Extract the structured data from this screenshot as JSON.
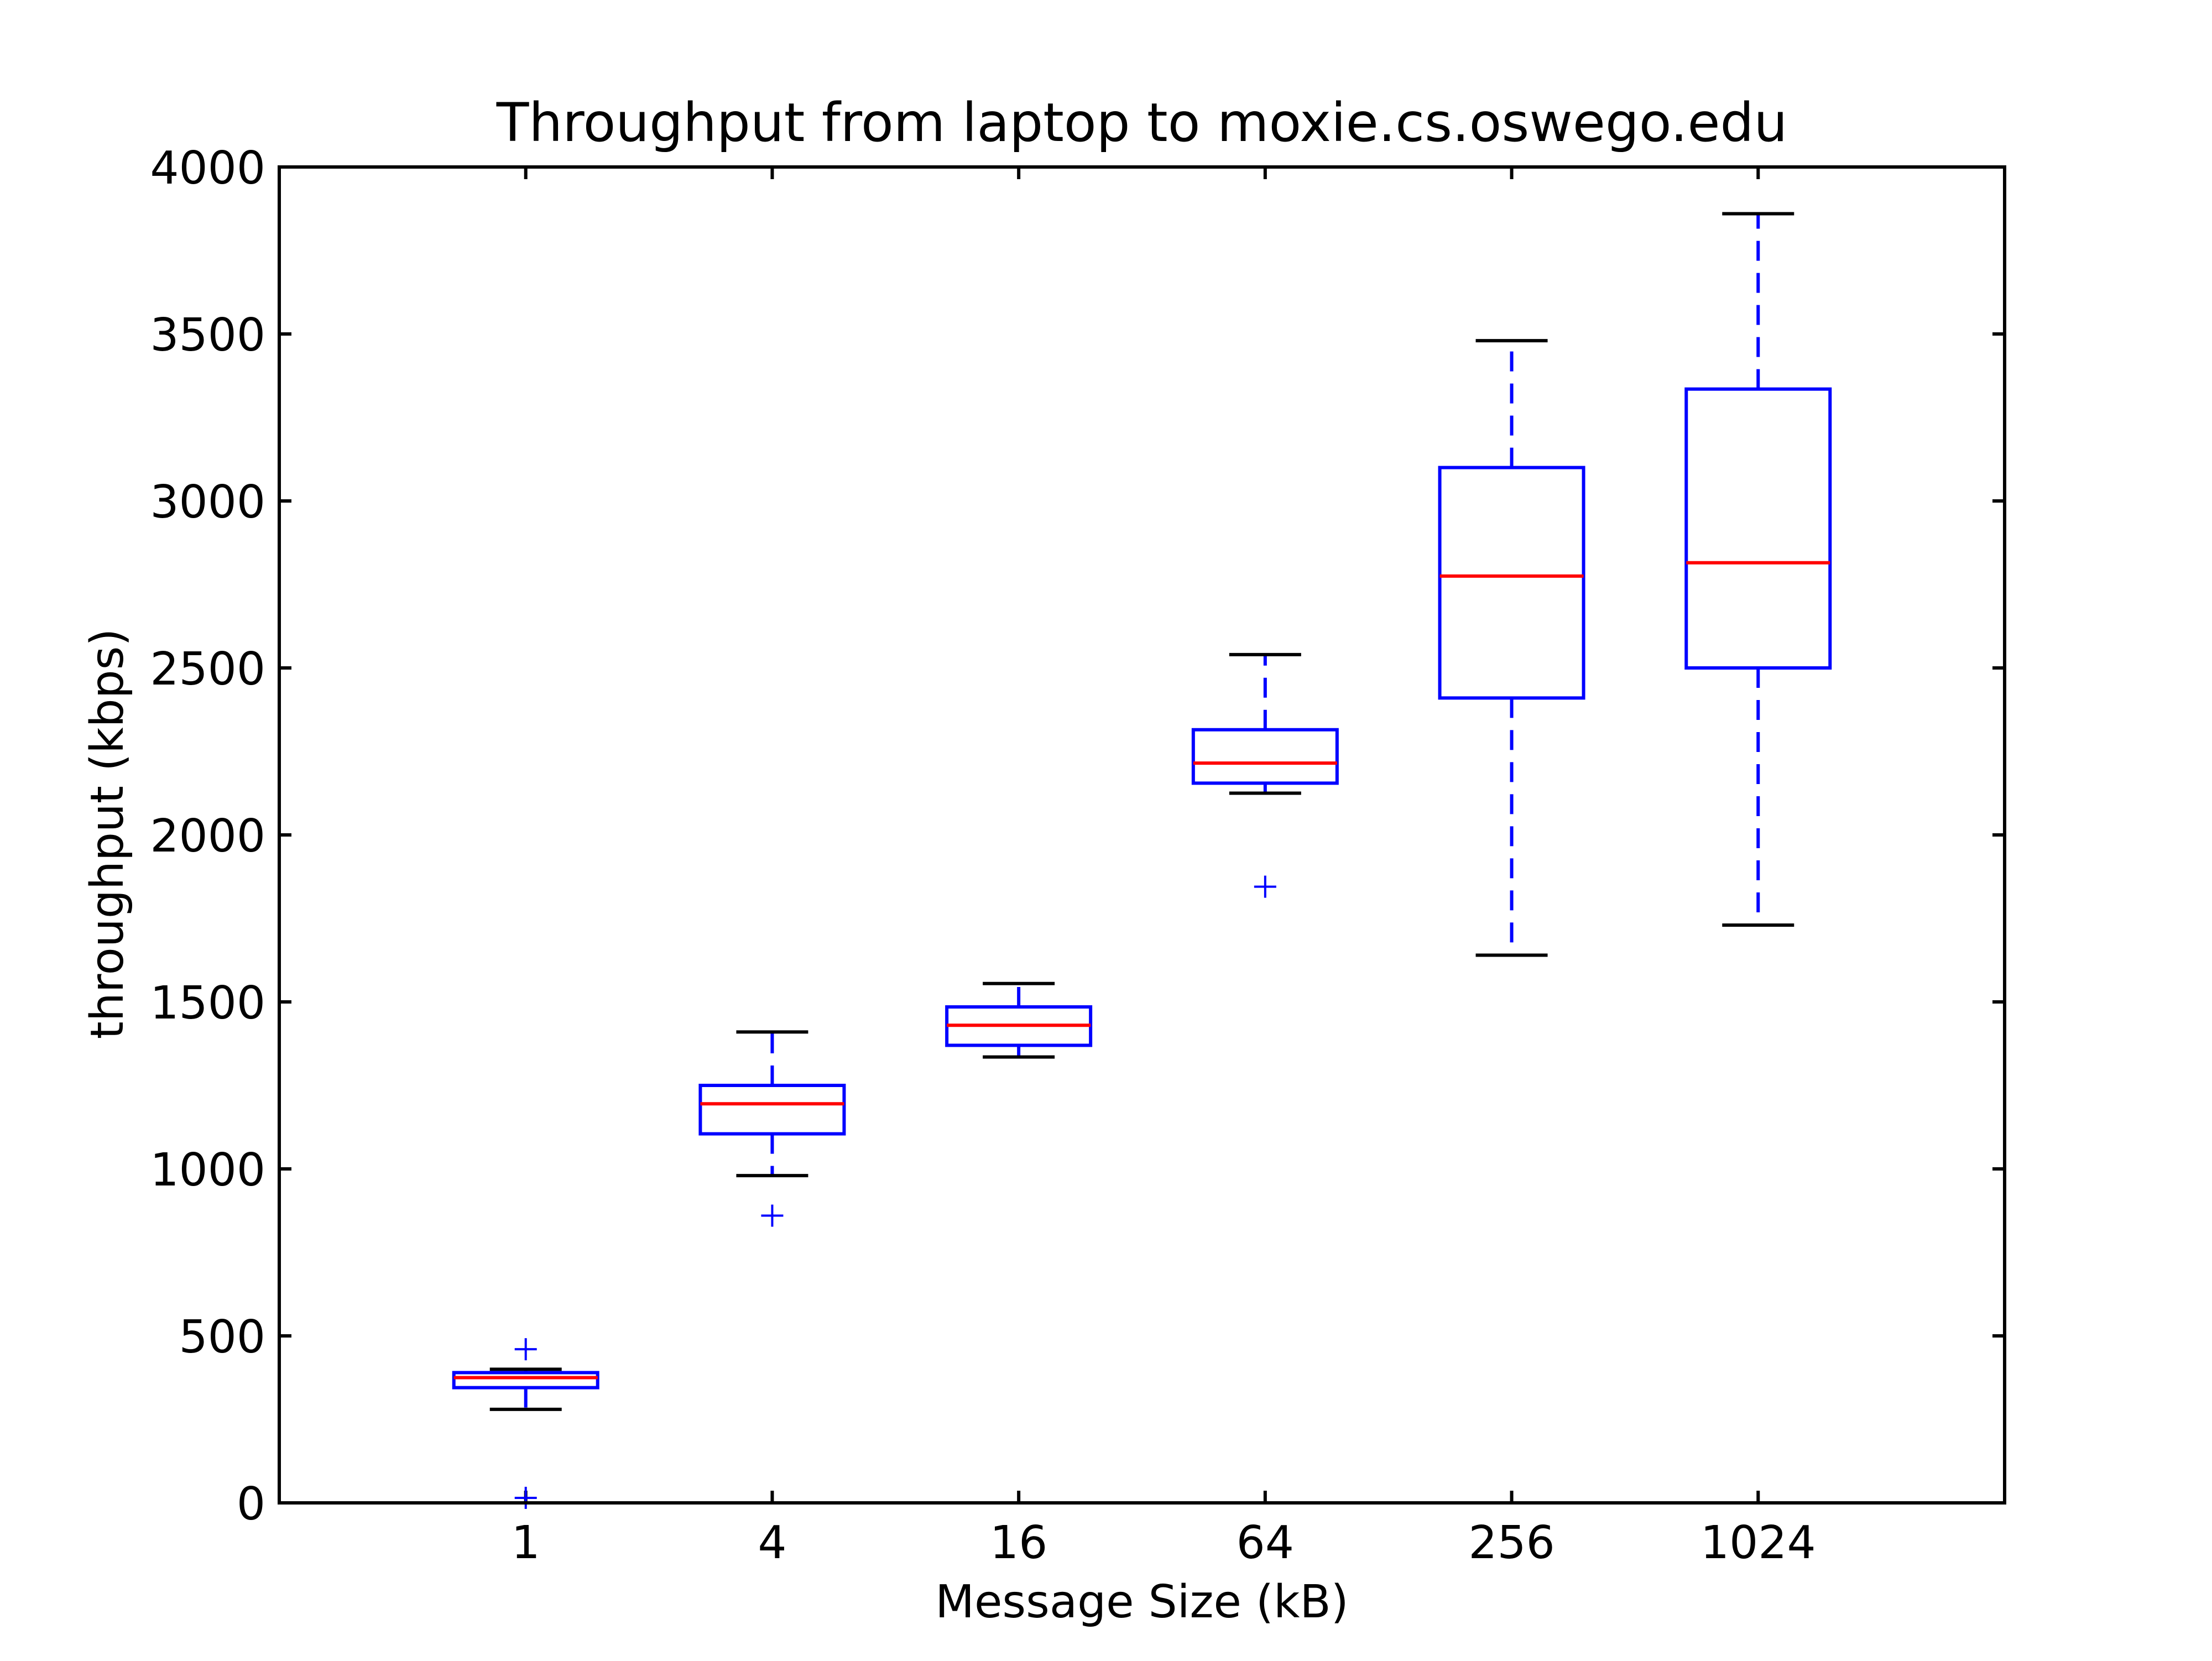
{
  "chart_data": {
    "type": "box",
    "title": "Throughput from laptop to moxie.cs.oswego.edu",
    "xlabel": "Message Size (kB)",
    "ylabel": "throughput (kbps)",
    "categories": [
      "1",
      "4",
      "16",
      "64",
      "256",
      "1024"
    ],
    "ylim": [
      0,
      4000
    ],
    "yticks": [
      "0",
      "500",
      "1000",
      "1500",
      "2000",
      "2500",
      "3000",
      "3500",
      "4000"
    ],
    "grid": false,
    "boxes": [
      {
        "category": "1",
        "whisker_low": 280,
        "q1": 345,
        "median": 375,
        "q3": 390,
        "whisker_high": 400,
        "outliers": [
          460,
          15
        ]
      },
      {
        "category": "4",
        "whisker_low": 980,
        "q1": 1105,
        "median": 1195,
        "q3": 1250,
        "whisker_high": 1410,
        "outliers": [
          860
        ]
      },
      {
        "category": "16",
        "whisker_low": 1335,
        "q1": 1370,
        "median": 1430,
        "q3": 1485,
        "whisker_high": 1555,
        "outliers": []
      },
      {
        "category": "64",
        "whisker_low": 2125,
        "q1": 2155,
        "median": 2215,
        "q3": 2315,
        "whisker_high": 2540,
        "outliers": [
          1845
        ]
      },
      {
        "category": "256",
        "whisker_low": 1640,
        "q1": 2410,
        "median": 2775,
        "q3": 3100,
        "whisker_high": 3480,
        "outliers": []
      },
      {
        "category": "1024",
        "whisker_low": 1730,
        "q1": 2500,
        "median": 2815,
        "q3": 3335,
        "whisker_high": 3860,
        "outliers": []
      }
    ],
    "colors": {
      "box": "#0000ff",
      "median": "#ff0000",
      "whisker_cap": "#000000",
      "outlier": "#0000ff",
      "axes": "#000000"
    }
  }
}
